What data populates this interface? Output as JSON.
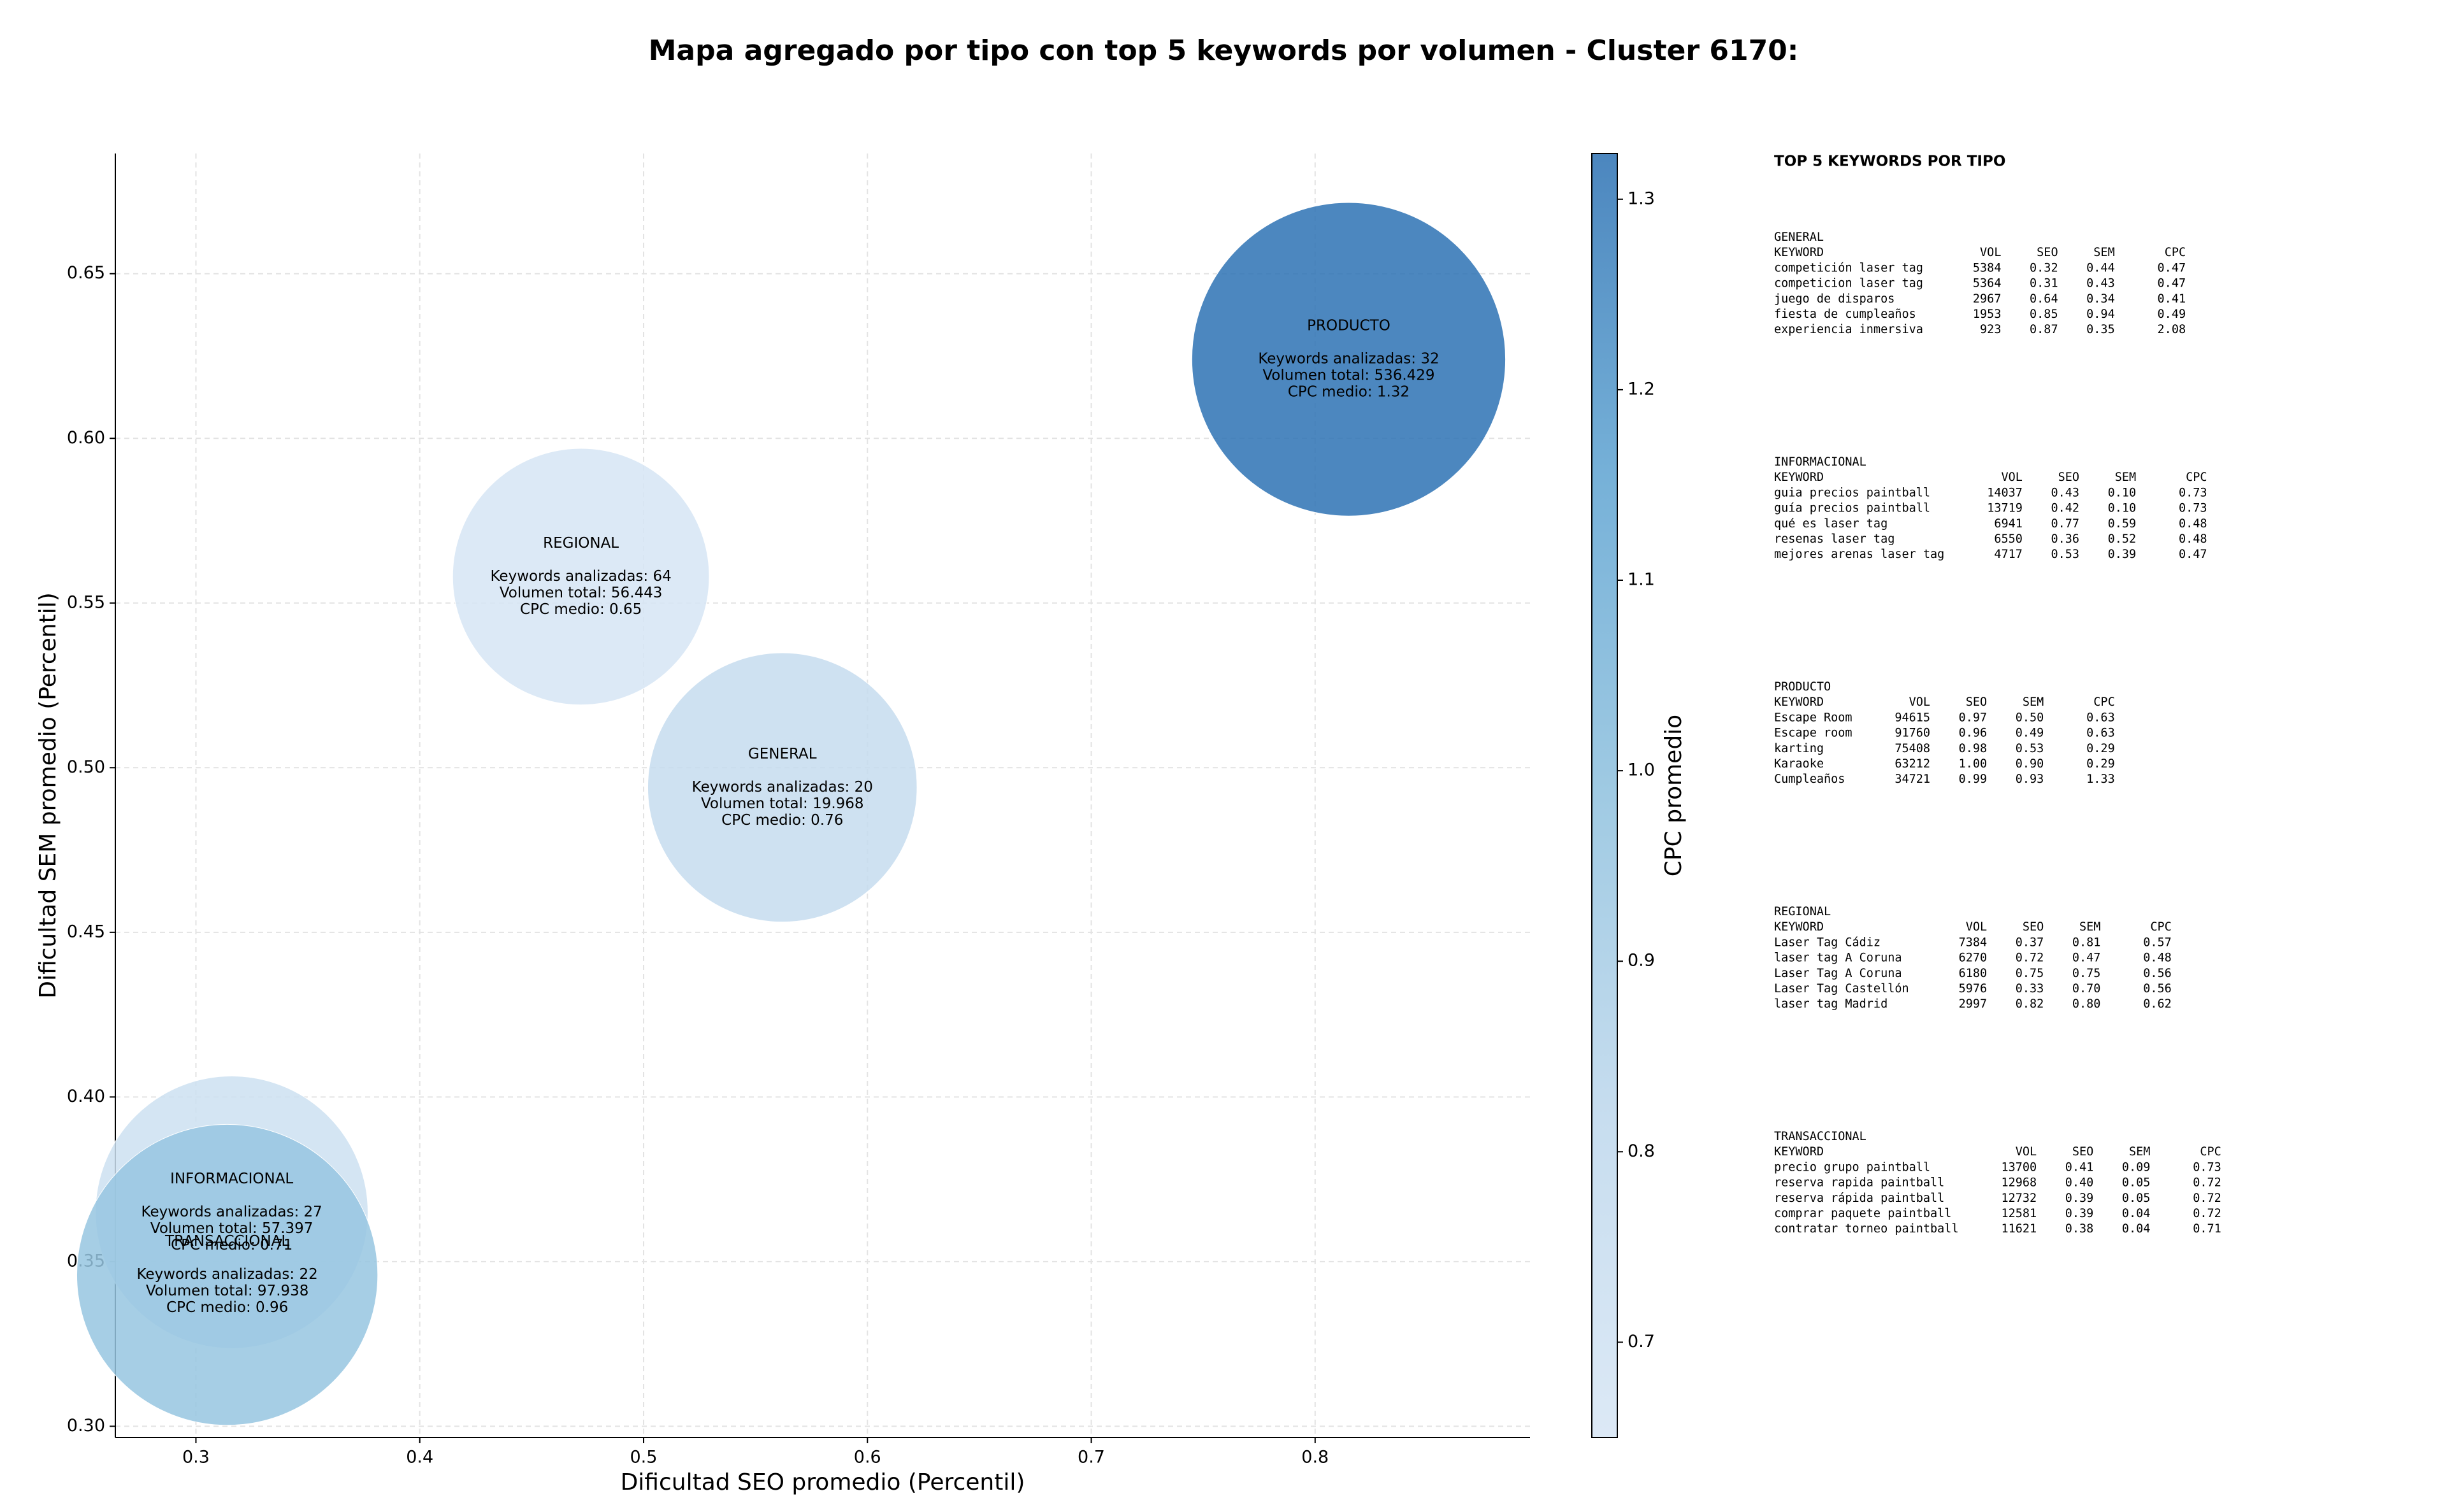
{
  "chart_data": {
    "type": "bubble",
    "title": "Mapa agregado por tipo con top 5 keywords por volumen - Cluster 6170:",
    "xlabel": "Dificultad SEO promedio (Percentil)",
    "ylabel": "Dificultad SEM promedio (Percentil)",
    "colorbar_label": "CPC promedio",
    "xlim": [
      0.264,
      0.896
    ],
    "ylim": [
      0.2966,
      0.6865
    ],
    "xticks": [
      0.3,
      0.4,
      0.5,
      0.6,
      0.7,
      0.8
    ],
    "yticks": [
      {
        "value": 0.3,
        "label": "0.30"
      },
      0.35,
      {
        "value": 0.4,
        "label": "0.40"
      },
      0.45,
      {
        "value": 0.5,
        "label": "0.50"
      },
      0.55,
      {
        "value": 0.6,
        "label": "0.60"
      },
      0.65
    ],
    "clim": [
      0.65,
      1.324
    ],
    "cticks": [
      0.7,
      0.8,
      0.9,
      {
        "value": 1.0,
        "label": "1.0"
      },
      1.1,
      1.2,
      1.3
    ],
    "colormap": [
      "#d6e5f4",
      "#bdd7ec",
      "#8fc1de",
      "#5ea3d1",
      "#2c71b3"
    ],
    "grid": true,
    "categories": [
      "GENERAL",
      "INFORMACIONAL",
      "PRODUCTO",
      "REGIONAL",
      "TRANSACCIONAL"
    ],
    "x": [
      0.562,
      0.316,
      0.815,
      0.472,
      0.314
    ],
    "values": [
      0.494,
      0.365,
      0.624,
      0.558,
      0.346
    ],
    "sizes": [
      85,
      86,
      99,
      81,
      95
    ],
    "color_values": [
      0.76,
      0.71,
      1.32,
      0.65,
      0.96
    ],
    "annotations": [
      [
        "Keywords analizadas: 20",
        "Volumen total: 19.968",
        "CPC medio: 0.76"
      ],
      [
        "Keywords analizadas: 27",
        "Volumen total: 57.397",
        "CPC medio: 0.71"
      ],
      [
        "Keywords analizadas: 32",
        "Volumen total: 536.429",
        "CPC medio: 1.32"
      ],
      [
        "Keywords analizadas: 64",
        "Volumen total: 56.443",
        "CPC medio: 0.65"
      ],
      [
        "Keywords analizadas: 22",
        "Volumen total: 97.938",
        "CPC medio: 0.96"
      ]
    ],
    "panel": {
      "title": "TOP 5 KEYWORDS POR TIPO",
      "columns": [
        "KEYWORD",
        "VOL",
        "SEO",
        "SEM",
        "CPC"
      ],
      "sections": [
        {
          "name": "GENERAL",
          "rows": [
            [
              "competición laser tag",
              "5384",
              "0.32",
              "0.44",
              "0.47"
            ],
            [
              "competicion laser tag",
              "5364",
              "0.31",
              "0.43",
              "0.47"
            ],
            [
              "juego de disparos",
              "2967",
              "0.64",
              "0.34",
              "0.41"
            ],
            [
              "fiesta de cumpleaños",
              "1953",
              "0.85",
              "0.94",
              "0.49"
            ],
            [
              "experiencia inmersiva",
              "923",
              "0.87",
              "0.35",
              "2.08"
            ]
          ]
        },
        {
          "name": "INFORMACIONAL",
          "rows": [
            [
              "guia precios paintball",
              "14037",
              "0.43",
              "0.10",
              "0.73"
            ],
            [
              "guía precios paintball",
              "13719",
              "0.42",
              "0.10",
              "0.73"
            ],
            [
              "qué es laser tag",
              "6941",
              "0.77",
              "0.59",
              "0.48"
            ],
            [
              "resenas laser tag",
              "6550",
              "0.36",
              "0.52",
              "0.48"
            ],
            [
              "mejores arenas laser tag",
              "4717",
              "0.53",
              "0.39",
              "0.47"
            ]
          ]
        },
        {
          "name": "PRODUCTO",
          "rows": [
            [
              "Escape Room",
              "94615",
              "0.97",
              "0.50",
              "0.63"
            ],
            [
              "Escape room",
              "91760",
              "0.96",
              "0.49",
              "0.63"
            ],
            [
              "karting",
              "75408",
              "0.98",
              "0.53",
              "0.29"
            ],
            [
              "Karaoke",
              "63212",
              "1.00",
              "0.90",
              "0.29"
            ],
            [
              "Cumpleaños",
              "34721",
              "0.99",
              "0.93",
              "1.33"
            ]
          ]
        },
        {
          "name": "REGIONAL",
          "rows": [
            [
              "Laser Tag Cádiz",
              "7384",
              "0.37",
              "0.81",
              "0.57"
            ],
            [
              "laser tag A Coruna",
              "6270",
              "0.72",
              "0.47",
              "0.48"
            ],
            [
              "Laser Tag A Coruna",
              "6180",
              "0.75",
              "0.75",
              "0.56"
            ],
            [
              "Laser Tag Castellón",
              "5976",
              "0.33",
              "0.70",
              "0.56"
            ],
            [
              "laser tag Madrid",
              "2997",
              "0.82",
              "0.80",
              "0.62"
            ]
          ]
        },
        {
          "name": "TRANSACCIONAL",
          "rows": [
            [
              "precio grupo paintball",
              "13700",
              "0.41",
              "0.09",
              "0.73"
            ],
            [
              "reserva rapida paintball",
              "12968",
              "0.40",
              "0.05",
              "0.72"
            ],
            [
              "reserva rápida paintball",
              "12732",
              "0.39",
              "0.05",
              "0.72"
            ],
            [
              "comprar paquete paintball",
              "12581",
              "0.39",
              "0.04",
              "0.72"
            ],
            [
              "contratar torneo paintball",
              "11621",
              "0.38",
              "0.04",
              "0.71"
            ]
          ]
        }
      ]
    }
  }
}
